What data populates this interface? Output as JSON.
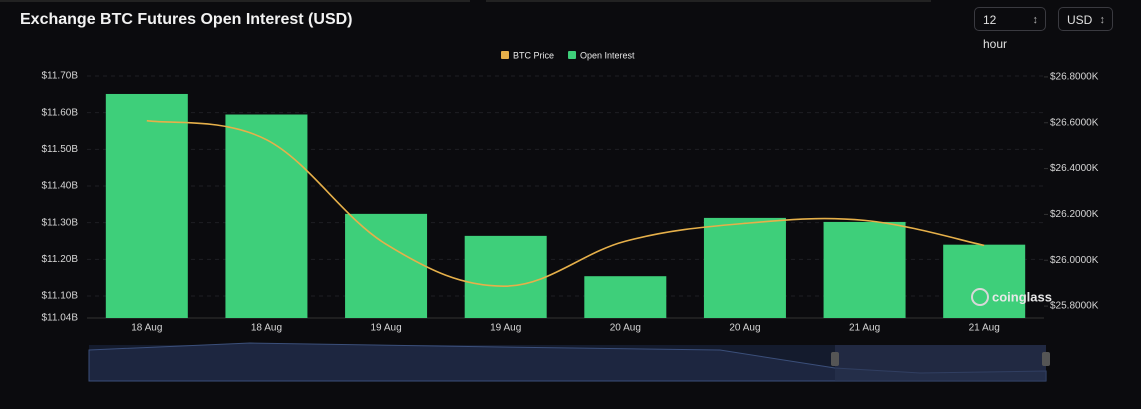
{
  "interval": "12 hour",
  "currency": "USD",
  "chart_data": {
    "type": "bar",
    "title": "Exchange BTC Futures Open Interest (USD)",
    "watermark": "coinglass",
    "categories": [
      "18 Aug",
      "18 Aug",
      "19 Aug",
      "19 Aug",
      "20 Aug",
      "20 Aug",
      "21 Aug",
      "21 Aug"
    ],
    "series": [
      {
        "name": "BTC Price",
        "type": "line",
        "axis": "y2",
        "color": "#e6b04a",
        "values": [
          26.609,
          26.526,
          26.07,
          25.887,
          26.083,
          26.161,
          26.174,
          26.065
        ]
      },
      {
        "name": "Open Interest",
        "type": "bar",
        "color": "#3ecf7a",
        "values": [
          11.651,
          11.595,
          11.324,
          11.264,
          11.154,
          11.313,
          11.302,
          11.24
        ]
      }
    ],
    "ylim": [
      11.04,
      11.7
    ],
    "yticks": [
      {
        "value": 11.04,
        "label": "$11.04B"
      },
      {
        "value": 11.1,
        "label": "$11.10B"
      },
      {
        "value": 11.2,
        "label": "$11.20B"
      },
      {
        "value": 11.3,
        "label": "$11.30B"
      },
      {
        "value": 11.4,
        "label": "$11.40B"
      },
      {
        "value": 11.5,
        "label": "$11.50B"
      },
      {
        "value": 11.6,
        "label": "$11.60B"
      },
      {
        "value": 11.7,
        "label": "$11.70B"
      }
    ],
    "y2lim": [
      25.748,
      26.804
    ],
    "y2ticks": [
      {
        "value": 25.8,
        "label": "$25.8000K"
      },
      {
        "value": 26.0,
        "label": "$26.0000K"
      },
      {
        "value": 26.2,
        "label": "$26.2000K"
      },
      {
        "value": 26.4,
        "label": "$26.4000K"
      },
      {
        "value": 26.6,
        "label": "$26.6000K"
      },
      {
        "value": 26.8,
        "label": "$26.8000K"
      }
    ],
    "grid": true,
    "legend": "top"
  }
}
